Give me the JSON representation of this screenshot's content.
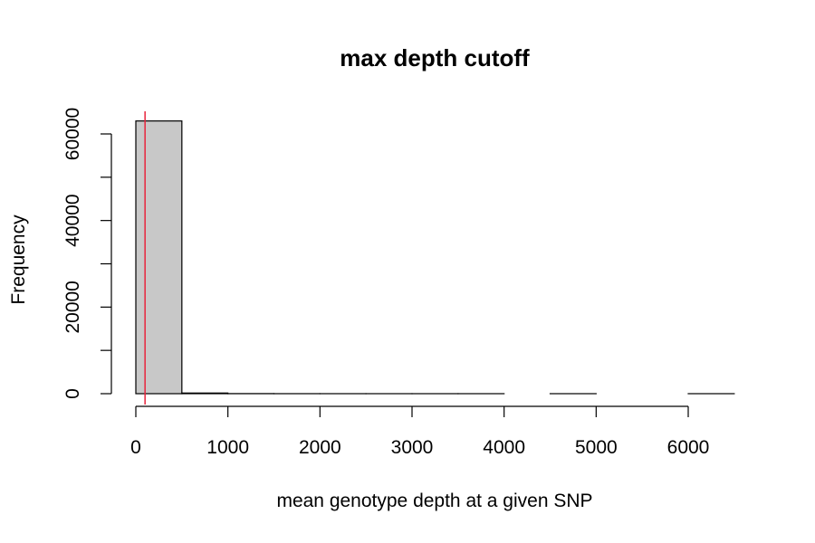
{
  "chart_data": {
    "type": "bar",
    "title": "max depth cutoff",
    "xlabel": "mean genotype depth at a given SNP",
    "ylabel": "Frequency",
    "bin_width": 500,
    "bins": [
      {
        "start": 0,
        "end": 500,
        "count": 63000
      },
      {
        "start": 500,
        "end": 1000,
        "count": 150
      },
      {
        "start": 1000,
        "end": 1500,
        "count": 20
      },
      {
        "start": 1500,
        "end": 2000,
        "count": 5
      },
      {
        "start": 2000,
        "end": 2500,
        "count": 2
      },
      {
        "start": 2500,
        "end": 3000,
        "count": 1
      },
      {
        "start": 3000,
        "end": 3500,
        "count": 1
      },
      {
        "start": 3500,
        "end": 4000,
        "count": 1
      },
      {
        "start": 4000,
        "end": 4500,
        "count": 0
      },
      {
        "start": 4500,
        "end": 5000,
        "count": 1
      },
      {
        "start": 5000,
        "end": 5500,
        "count": 0
      },
      {
        "start": 5500,
        "end": 6000,
        "count": 0
      },
      {
        "start": 6000,
        "end": 6500,
        "count": 1
      }
    ],
    "x_ticks": [
      0,
      1000,
      2000,
      3000,
      4000,
      5000,
      6000
    ],
    "x_tick_labels": [
      "0",
      "1000",
      "2000",
      "3000",
      "4000",
      "5000",
      "6000"
    ],
    "y_ticks": [
      0,
      10000,
      20000,
      30000,
      40000,
      50000,
      60000
    ],
    "y_tick_labels": [
      "0",
      "",
      "20000",
      "",
      "40000",
      "",
      "60000"
    ],
    "xlim": [
      0,
      6500
    ],
    "ylim": [
      0,
      63000
    ],
    "cutoff_line": {
      "x": 100,
      "color": "#e8233c"
    },
    "bar_fill": "#c8c8c8",
    "bar_stroke": "#000000",
    "grid": false,
    "legend": "none"
  }
}
